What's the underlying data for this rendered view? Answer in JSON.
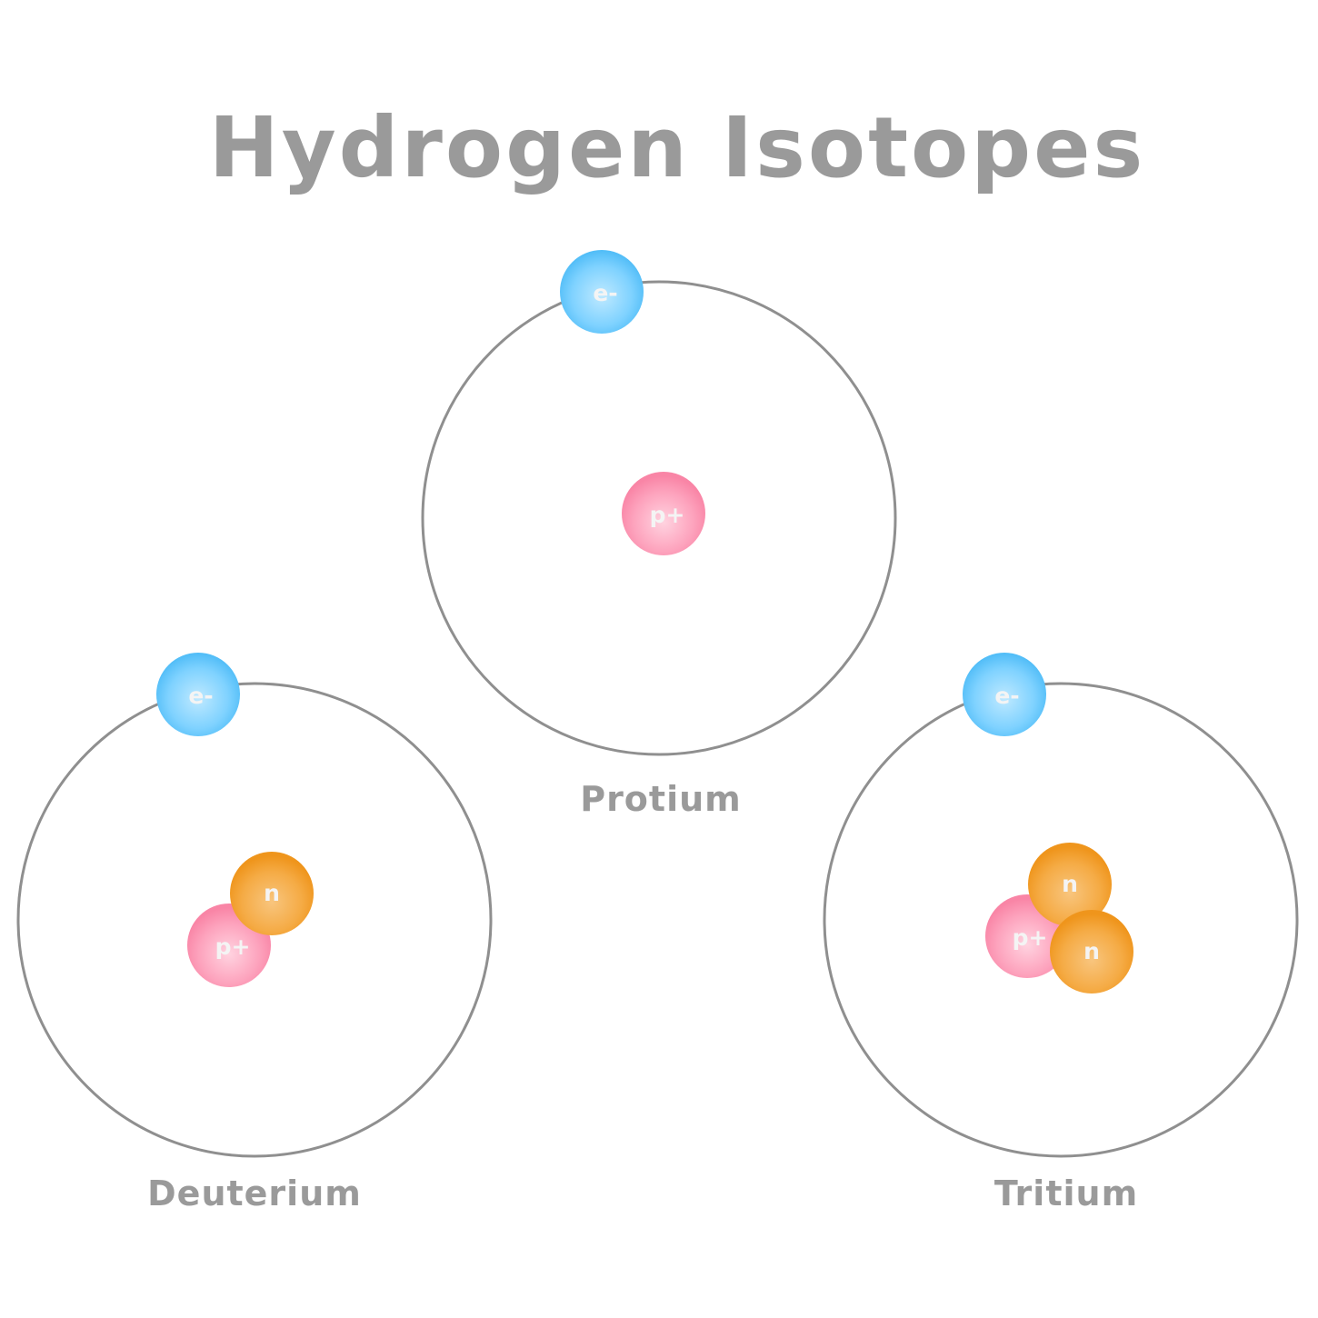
{
  "title": "Hydrogen Isotopes",
  "colors": {
    "text_gray": "#9a9a9a",
    "orbit_stroke": "#8f8f8f",
    "electron": "#5cc4fb",
    "proton": "#fb8fae",
    "neutron": "#f39a24",
    "particle_label": "#f4f4f4"
  },
  "particle_labels": {
    "electron": "e-",
    "proton": "p+",
    "neutron": "n"
  },
  "isotopes": [
    {
      "name": "Protium",
      "electrons": 1,
      "protons": 1,
      "neutrons": 0
    },
    {
      "name": "Deuterium",
      "electrons": 1,
      "protons": 1,
      "neutrons": 1
    },
    {
      "name": "Tritium",
      "electrons": 1,
      "protons": 1,
      "neutrons": 2
    }
  ]
}
